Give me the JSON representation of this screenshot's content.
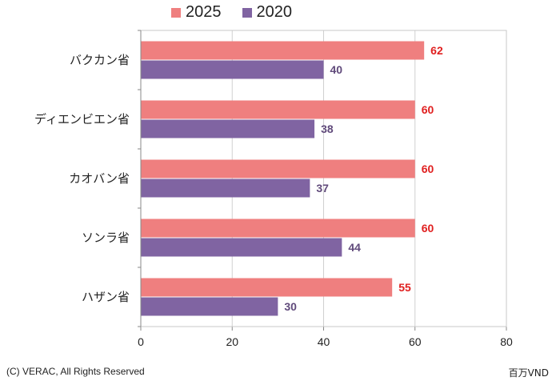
{
  "chart_data": {
    "type": "bar",
    "orientation": "horizontal",
    "categories": [
      "バクカン省",
      "ディエンビエン省",
      "カオバン省",
      "ソンラ省",
      "ハザン省"
    ],
    "series": [
      {
        "name": "2025",
        "values": [
          62,
          60,
          60,
          60,
          55
        ],
        "color": "#EF7F7F",
        "label_color": "#E02020"
      },
      {
        "name": "2020",
        "values": [
          40,
          38,
          37,
          44,
          30
        ],
        "color": "#8064A2",
        "label_color": "#604A7B"
      }
    ],
    "xlim": [
      0,
      80
    ],
    "xticks": [
      "0",
      "20",
      "40",
      "60",
      "80"
    ],
    "xlabel": "",
    "ylabel": "",
    "unit": "百万VND",
    "grid": true,
    "legend_position": "top"
  },
  "footer": {
    "copyright": "(C) VERAC, All Rights Reserved",
    "unit": "百万VND"
  }
}
